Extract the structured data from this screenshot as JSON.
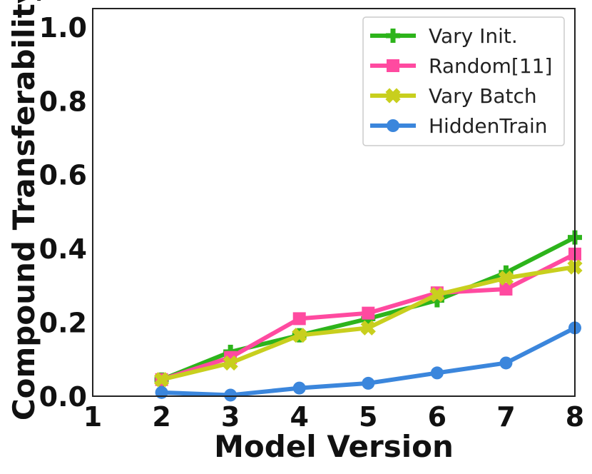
{
  "chart_data": {
    "type": "line",
    "title": "",
    "xlabel": "Model Version",
    "ylabel": "Compound Transferability",
    "xlim": [
      1,
      8
    ],
    "ylim": [
      0,
      1.05
    ],
    "x_ticks": [
      1,
      2,
      3,
      4,
      5,
      6,
      7,
      8
    ],
    "x_tick_labels": [
      "1",
      "2",
      "3",
      "4",
      "5",
      "6",
      "7",
      "8"
    ],
    "y_ticks": [
      0.0,
      0.2,
      0.4,
      0.6,
      0.8,
      1.0
    ],
    "y_tick_labels": [
      "0.0",
      "0.2",
      "0.4",
      "0.6",
      "0.8",
      "1.0"
    ],
    "legend_position": "top-right",
    "grid": false,
    "x": [
      2,
      3,
      4,
      5,
      6,
      7,
      8
    ],
    "series": [
      {
        "name": "Vary Init.",
        "color": "#2db41b",
        "marker": "plus",
        "values": [
          0.045,
          0.12,
          0.165,
          0.21,
          0.26,
          0.335,
          0.43
        ]
      },
      {
        "name": "Random[11]",
        "color": "#ff4aa0",
        "marker": "square",
        "values": [
          0.045,
          0.105,
          0.21,
          0.225,
          0.28,
          0.29,
          0.385
        ]
      },
      {
        "name": "Vary Batch",
        "color": "#c8cf1e",
        "marker": "x",
        "values": [
          0.045,
          0.09,
          0.165,
          0.185,
          0.275,
          0.32,
          0.35
        ]
      },
      {
        "name": "HiddenTrain",
        "color": "#3b86dc",
        "marker": "circle",
        "values": [
          0.01,
          0.003,
          0.022,
          0.035,
          0.063,
          0.09,
          0.185
        ]
      }
    ]
  }
}
